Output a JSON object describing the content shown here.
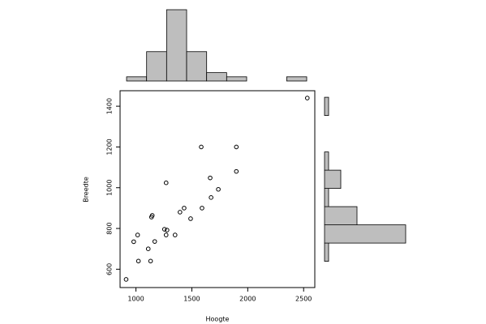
{
  "chart_data": [
    {
      "type": "scatter",
      "x": [
        912,
        980,
        1015,
        1022,
        1110,
        1131,
        1139,
        1146,
        1168,
        1270,
        1255,
        1270,
        1278,
        1350,
        1394,
        1431,
        1489,
        1584,
        1591,
        1664,
        1672,
        1737,
        1898,
        1898,
        2533
      ],
      "y": [
        550,
        735,
        768,
        640,
        700,
        640,
        856,
        864,
        736,
        1024,
        796,
        768,
        792,
        768,
        880,
        900,
        848,
        1200,
        900,
        1048,
        952,
        992,
        1200,
        1080,
        1440
      ],
      "xlim": [
        858,
        2600
      ],
      "ylim": [
        510,
        1476
      ],
      "xticks": [
        1000,
        1500,
        2000,
        2500
      ],
      "yticks": [
        600,
        800,
        1000,
        1200,
        1400
      ],
      "x_label": "Hoogte",
      "y_label": "Breedte",
      "color": "#000000"
    },
    {
      "type": "histogram",
      "orientation": "vertical",
      "bins": [
        900,
        1100,
        1300,
        1500,
        1700,
        1900,
        2100,
        2300,
        2500,
        2700
      ],
      "values": [
        1,
        7,
        17,
        7,
        2,
        1,
        0,
        0,
        1
      ],
      "xlim": [
        835,
        2781
      ],
      "ylim": [
        0,
        17
      ],
      "color": "#bebebe"
    },
    {
      "type": "histogram",
      "orientation": "horizontal",
      "bins": [
        500,
        600,
        700,
        800,
        900,
        1000,
        1100,
        1200,
        1300,
        1400,
        1500
      ],
      "values": [
        0,
        1,
        20,
        8,
        1,
        4,
        1,
        0,
        0,
        1
      ],
      "ylim": [
        456,
        1536
      ],
      "xlim": [
        0,
        20
      ],
      "color": "#bebebe"
    }
  ]
}
